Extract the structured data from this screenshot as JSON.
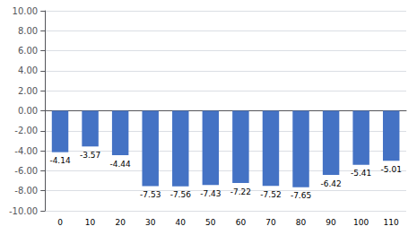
{
  "chart_data": {
    "type": "bar",
    "categories": [
      "0",
      "10",
      "20",
      "30",
      "40",
      "50",
      "60",
      "70",
      "80",
      "90",
      "100",
      "110"
    ],
    "values": [
      -4.14,
      -3.57,
      -4.44,
      -7.53,
      -7.56,
      -7.43,
      -7.22,
      -7.52,
      -7.65,
      -6.42,
      -5.41,
      -5.01
    ],
    "color": "#4472C4",
    "ylim": [
      -10,
      10
    ],
    "yticks": [
      {
        "value": -10,
        "label": "-10.00"
      },
      {
        "value": -8,
        "label": "-8.00"
      },
      {
        "value": -6,
        "label": "-6.00"
      },
      {
        "value": -4,
        "label": "-4.00"
      },
      {
        "value": -2,
        "label": "-2.00"
      },
      {
        "value": 0,
        "label": "0.00"
      },
      {
        "value": 2,
        "label": "2.00"
      },
      {
        "value": 4,
        "label": "4.00"
      },
      {
        "value": 6,
        "label": "6.00"
      },
      {
        "value": 8,
        "label": "8.00"
      },
      {
        "value": 10,
        "label": "10.00"
      }
    ],
    "grid": true,
    "data_labels": true
  }
}
